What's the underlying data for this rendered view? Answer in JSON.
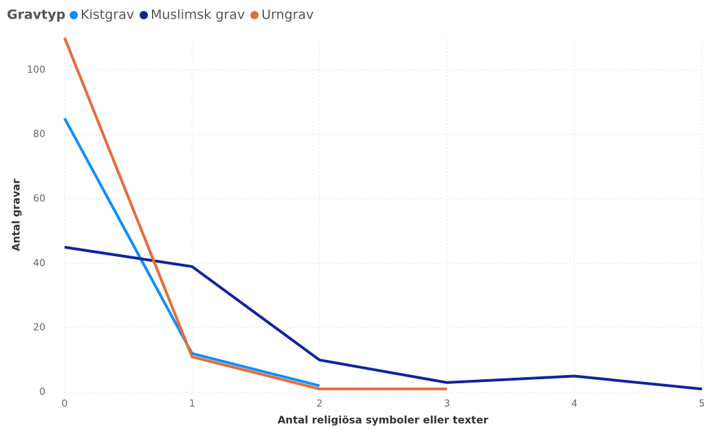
{
  "chart_data": {
    "type": "line",
    "legend_title": "Gravtyp",
    "x_label": "Antal religiösa symboler eller texter",
    "y_label": "Antal gravar",
    "x": [
      0,
      1,
      2,
      3,
      4,
      5
    ],
    "series": [
      {
        "name": "Kistgrav",
        "color": "#118DFF",
        "values": [
          85,
          12,
          2,
          null,
          null,
          null
        ]
      },
      {
        "name": "Muslimsk grav",
        "color": "#12239E",
        "values": [
          45,
          39,
          10,
          3,
          5,
          1
        ]
      },
      {
        "name": "Urngrav",
        "color": "#E66C37",
        "values": [
          110,
          11,
          1,
          1,
          null,
          null
        ]
      }
    ],
    "xlim": [
      0,
      5
    ],
    "xticks": [
      0,
      1,
      2,
      3,
      4,
      5
    ],
    "ylim": [
      0,
      110
    ],
    "yticks": [
      0,
      20,
      40,
      60,
      80,
      100
    ],
    "grid": true,
    "legend": "top-left"
  }
}
